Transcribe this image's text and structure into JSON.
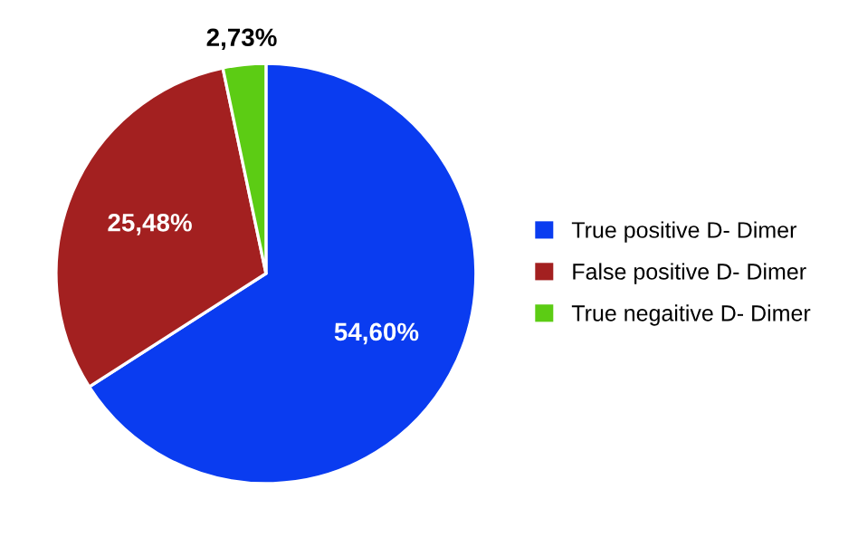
{
  "chart_data": {
    "type": "pie",
    "categories": [
      "True positive D- Dimer",
      "False positive D- Dimer",
      "True negaitive D- Dimer"
    ],
    "values": [
      54.6,
      25.48,
      2.73
    ],
    "colors": [
      "#0a3cf0",
      "#a32020",
      "#5ccc14"
    ],
    "value_labels": [
      "54,60%",
      "25,48%",
      "2,73%"
    ],
    "legend": "right"
  }
}
